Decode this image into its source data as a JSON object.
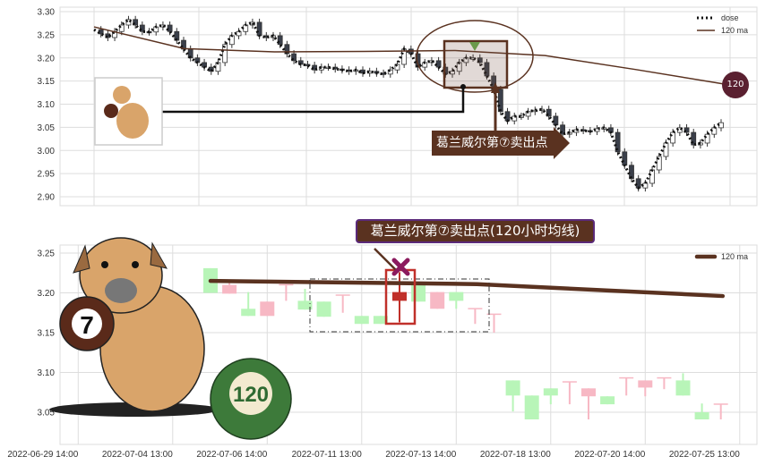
{
  "chart_data": [
    {
      "type": "candlestick-line",
      "panel": "top",
      "ylim": [
        2.89,
        3.31
      ],
      "yticks": [
        "3.30",
        "3.25",
        "3.20",
        "3.15",
        "3.10",
        "3.05",
        "3.00",
        "2.95",
        "2.90"
      ],
      "grid": true,
      "legend_position": "top-right",
      "series": [
        {
          "name": "dose",
          "style": "dotted",
          "color": "#111111",
          "values": [
            3.261,
            3.252,
            3.244,
            3.257,
            3.271,
            3.283,
            3.271,
            3.257,
            3.256,
            3.267,
            3.271,
            3.257,
            3.238,
            3.219,
            3.2,
            3.19,
            3.18,
            3.171,
            3.19,
            3.229,
            3.248,
            3.257,
            3.271,
            3.277,
            3.248,
            3.244,
            3.248,
            3.229,
            3.209,
            3.194,
            3.186,
            3.184,
            3.174,
            3.18,
            3.18,
            3.176,
            3.174,
            3.171,
            3.174,
            3.167,
            3.171,
            3.167,
            3.165,
            3.174,
            3.186,
            3.219,
            3.209,
            3.18,
            3.19,
            3.194,
            3.18,
            3.165,
            3.171,
            3.19,
            3.2,
            3.2,
            3.19,
            3.161,
            3.132,
            3.084,
            3.064,
            3.074,
            3.074,
            3.084,
            3.087,
            3.089,
            3.074,
            3.055,
            3.035,
            3.039,
            3.045,
            3.043,
            3.041,
            3.047,
            3.049,
            3.039,
            2.997,
            2.968,
            2.939,
            2.919,
            2.929,
            2.958,
            2.987,
            3.016,
            3.039,
            3.049,
            3.039,
            3.012,
            3.016,
            3.035,
            3.049,
            3.06
          ]
        },
        {
          "name": "120 ma",
          "style": "solid",
          "color": "#5a3220",
          "values": [
            3.267,
            3.22,
            3.213,
            3.214,
            3.216,
            3.205,
            3.175,
            3.143
          ]
        }
      ],
      "annotations": {
        "sell_label": "葛兰威尔第⑦卖出点",
        "ma_badge": "120"
      }
    },
    {
      "type": "candlestick",
      "panel": "bottom",
      "ylim": [
        3.03,
        3.26
      ],
      "yticks": [
        "3.25",
        "3.20",
        "3.15",
        "3.10",
        "3.05"
      ],
      "xticks": [
        "2022-06-29 14:00",
        "2022-07-04 13:00",
        "2022-07-06 14:00",
        "2022-07-11 13:00",
        "2022-07-13 14:00",
        "2022-07-18 13:00",
        "2022-07-20 14:00",
        "2022-07-25 13:00"
      ],
      "grid": true,
      "legend_position": "top-right",
      "up_color": "#b8f5b8",
      "down_color": "#f7b8c4",
      "candles": [
        {
          "o": 3.2,
          "c": 3.231,
          "h": 3.231,
          "l": 3.2
        },
        {
          "o": 3.21,
          "c": 3.199,
          "h": 3.213,
          "l": 3.199
        },
        {
          "o": 3.171,
          "c": 3.18,
          "h": 3.201,
          "l": 3.171
        },
        {
          "o": 3.189,
          "c": 3.171,
          "h": 3.189,
          "l": 3.171
        },
        {
          "o": 3.211,
          "c": 3.21,
          "h": 3.211,
          "l": 3.19
        },
        {
          "o": 3.179,
          "c": 3.19,
          "h": 3.205,
          "l": 3.179
        },
        {
          "o": 3.17,
          "c": 3.189,
          "h": 3.189,
          "l": 3.17
        },
        {
          "o": 3.198,
          "c": 3.197,
          "h": 3.197,
          "l": 3.175
        },
        {
          "o": 3.161,
          "c": 3.171,
          "h": 3.171,
          "l": 3.161
        },
        {
          "o": 3.161,
          "c": 3.171,
          "h": 3.171,
          "l": 3.161
        },
        {
          "o": 3.201,
          "c": 3.19,
          "h": 3.226,
          "l": 3.163
        },
        {
          "o": 3.189,
          "c": 3.21,
          "h": 3.21,
          "l": 3.189
        },
        {
          "o": 3.201,
          "c": 3.18,
          "h": 3.201,
          "l": 3.18
        },
        {
          "o": 3.19,
          "c": 3.201,
          "h": 3.201,
          "l": 3.18
        },
        {
          "o": 3.181,
          "c": 3.18,
          "h": 3.18,
          "l": 3.161
        },
        {
          "o": 3.174,
          "c": 3.173,
          "h": 3.173,
          "l": 3.15
        },
        {
          "o": 3.071,
          "c": 3.09,
          "h": 3.09,
          "l": 3.051
        },
        {
          "o": 3.041,
          "c": 3.071,
          "h": 3.071,
          "l": 3.041
        },
        {
          "o": 3.071,
          "c": 3.08,
          "h": 3.08,
          "l": 3.06
        },
        {
          "o": 3.089,
          "c": 3.088,
          "h": 3.088,
          "l": 3.06
        },
        {
          "o": 3.08,
          "c": 3.07,
          "h": 3.08,
          "l": 3.041
        },
        {
          "o": 3.06,
          "c": 3.07,
          "h": 3.07,
          "l": 3.06
        },
        {
          "o": 3.094,
          "c": 3.093,
          "h": 3.093,
          "l": 3.071
        },
        {
          "o": 3.09,
          "c": 3.081,
          "h": 3.09,
          "l": 3.07
        },
        {
          "o": 3.094,
          "c": 3.093,
          "h": 3.093,
          "l": 3.079
        },
        {
          "o": 3.071,
          "c": 3.09,
          "h": 3.099,
          "l": 3.071
        },
        {
          "o": 3.041,
          "c": 3.05,
          "h": 3.061,
          "l": 3.041
        },
        {
          "o": 3.061,
          "c": 3.06,
          "h": 3.06,
          "l": 3.041
        }
      ],
      "xtick_candle_index": [
        -7,
        -2,
        3,
        8,
        13,
        18,
        23,
        28
      ],
      "series": [
        {
          "name": "120 ma",
          "color": "#5a3220",
          "values": [
            3.215,
            3.211,
            3.196
          ]
        }
      ],
      "highlight_index": 10,
      "annotations": {
        "callout": "葛兰威尔第⑦卖出点(120小时均线)",
        "ball_7": "7",
        "ball_120": "120"
      }
    }
  ]
}
